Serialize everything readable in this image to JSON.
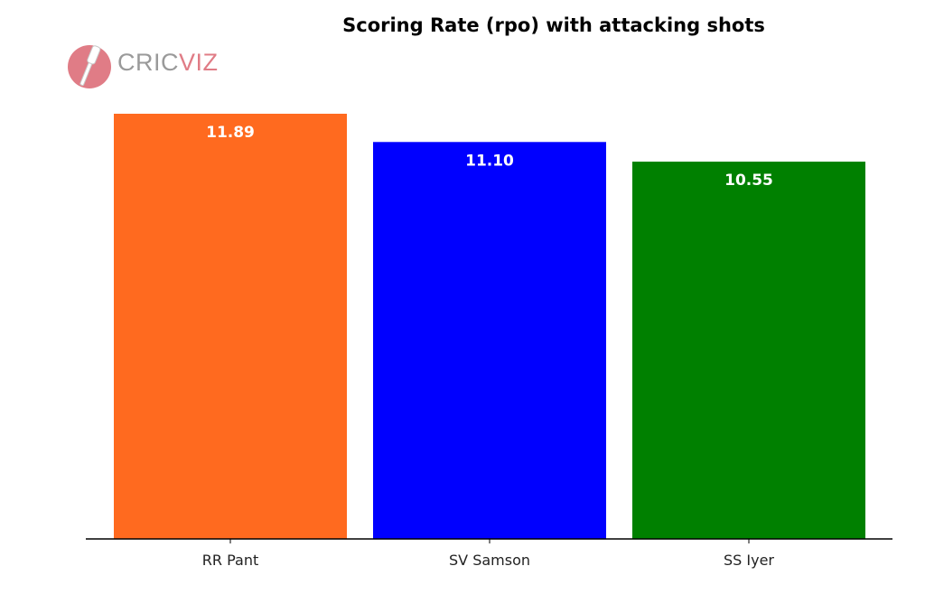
{
  "logo": {
    "part1": "CRIC",
    "part2": "VIZ"
  },
  "chart_data": {
    "type": "bar",
    "title": "Scoring Rate (rpo) with attacking shots",
    "categories": [
      "RR Pant",
      "SV Samson",
      "SS Iyer"
    ],
    "values": [
      11.89,
      11.1,
      10.55
    ],
    "value_labels": [
      "11.89",
      "11.10",
      "10.55"
    ],
    "colors": [
      "#ff6a1f",
      "#0000ff",
      "#008000"
    ],
    "xlabel": "",
    "ylabel": "",
    "grid": false,
    "y_axis_visible": false
  }
}
